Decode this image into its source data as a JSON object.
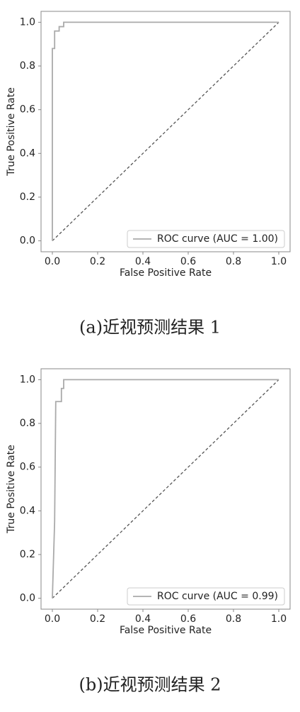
{
  "chart_data": [
    {
      "type": "line",
      "caption": "(a)近视预测结果 1",
      "xlabel": "False Positive Rate",
      "ylabel": "True Positive Rate",
      "xlim": [
        -0.05,
        1.05
      ],
      "ylim": [
        -0.05,
        1.05
      ],
      "xticks": [
        {
          "value": 0,
          "label": "0.0"
        },
        {
          "value": 0.2,
          "label": "0.2"
        },
        {
          "value": 0.4,
          "label": "0.4"
        },
        {
          "value": 0.6,
          "label": "0.6"
        },
        {
          "value": 0.8,
          "label": "0.8"
        },
        {
          "value": 1,
          "label": "1.0"
        }
      ],
      "yticks": [
        {
          "value": 0,
          "label": "0.0"
        },
        {
          "value": 0.2,
          "label": "0.2"
        },
        {
          "value": 0.4,
          "label": "0.4"
        },
        {
          "value": 0.6,
          "label": "0.6"
        },
        {
          "value": 0.8,
          "label": "0.8"
        },
        {
          "value": 1,
          "label": "1.0"
        }
      ],
      "legend": "lower right",
      "series": [
        {
          "name": "ROC curve (AUC = 1.00)",
          "color": "#aaaaaa",
          "x": [
            0,
            0,
            0.01,
            0.01,
            0.03,
            0.03,
            0.05,
            0.05,
            1
          ],
          "values": [
            0,
            0.88,
            0.88,
            0.96,
            0.96,
            0.98,
            0.98,
            1,
            1
          ]
        }
      ],
      "diagonal": {
        "x": [
          0,
          1
        ],
        "values": [
          0,
          1
        ],
        "color": "#555555"
      }
    },
    {
      "type": "line",
      "caption": "(b)近视预测结果 2",
      "xlabel": "False Positive Rate",
      "ylabel": "True Positive Rate",
      "xlim": [
        -0.05,
        1.05
      ],
      "ylim": [
        -0.05,
        1.05
      ],
      "xticks": [
        {
          "value": 0,
          "label": "0.0"
        },
        {
          "value": 0.2,
          "label": "0.2"
        },
        {
          "value": 0.4,
          "label": "0.4"
        },
        {
          "value": 0.6,
          "label": "0.6"
        },
        {
          "value": 0.8,
          "label": "0.8"
        },
        {
          "value": 1,
          "label": "1.0"
        }
      ],
      "yticks": [
        {
          "value": 0,
          "label": "0.0"
        },
        {
          "value": 0.2,
          "label": "0.2"
        },
        {
          "value": 0.4,
          "label": "0.4"
        },
        {
          "value": 0.6,
          "label": "0.6"
        },
        {
          "value": 0.8,
          "label": "0.8"
        },
        {
          "value": 1,
          "label": "1.0"
        }
      ],
      "legend": "lower right",
      "series": [
        {
          "name": "ROC curve (AUC = 0.99)",
          "color": "#aaaaaa",
          "x": [
            0,
            0.01,
            0.015,
            0.04,
            0.04,
            0.05,
            0.05,
            1
          ],
          "values": [
            0,
            0.35,
            0.9,
            0.9,
            0.96,
            0.96,
            1,
            1
          ]
        }
      ],
      "diagonal": {
        "x": [
          0,
          1
        ],
        "values": [
          0,
          1
        ],
        "color": "#555555"
      }
    }
  ]
}
